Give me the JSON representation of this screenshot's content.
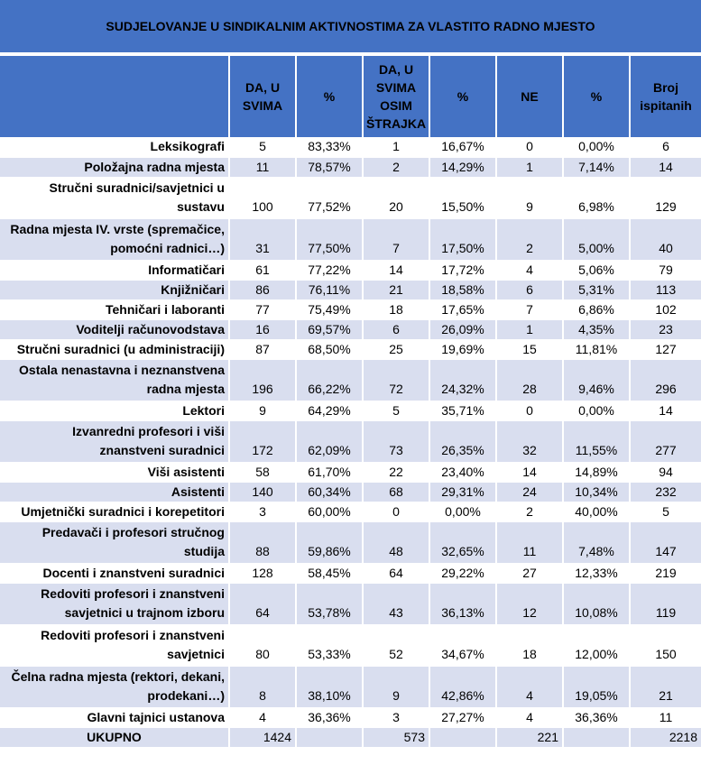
{
  "chart_data": {
    "type": "table",
    "title": "SUDJELOVANJE U SINDIKALNIM AKTIVNOSTIMA ZA VLASTITO RADNO MJESTO",
    "columns": [
      "",
      "DA, U SVIMA",
      "%",
      "DA, U SVIMA OSIM ŠTRAJKA",
      "%",
      "NE",
      "%",
      "Broj ispitanih"
    ],
    "rows": [
      {
        "label": "Leksikografi",
        "da_svima": "5",
        "pct_da": "83,33%",
        "da_osim": "1",
        "pct_osim": "16,67%",
        "ne": "0",
        "pct_ne": "0,00%",
        "broj": "6"
      },
      {
        "label": "Položajna radna mjesta",
        "da_svima": "11",
        "pct_da": "78,57%",
        "da_osim": "2",
        "pct_osim": "14,29%",
        "ne": "1",
        "pct_ne": "7,14%",
        "broj": "14"
      },
      {
        "label": "Stručni suradnici/savjetnici u sustavu",
        "da_svima": "100",
        "pct_da": "77,52%",
        "da_osim": "20",
        "pct_osim": "15,50%",
        "ne": "9",
        "pct_ne": "6,98%",
        "broj": "129"
      },
      {
        "label": "Radna mjesta IV. vrste (spremačice, pomoćni radnici…)",
        "da_svima": "31",
        "pct_da": "77,50%",
        "da_osim": "7",
        "pct_osim": "17,50%",
        "ne": "2",
        "pct_ne": "5,00%",
        "broj": "40"
      },
      {
        "label": "Informatičari",
        "da_svima": "61",
        "pct_da": "77,22%",
        "da_osim": "14",
        "pct_osim": "17,72%",
        "ne": "4",
        "pct_ne": "5,06%",
        "broj": "79"
      },
      {
        "label": "Knjižničari",
        "da_svima": "86",
        "pct_da": "76,11%",
        "da_osim": "21",
        "pct_osim": "18,58%",
        "ne": "6",
        "pct_ne": "5,31%",
        "broj": "113"
      },
      {
        "label": "Tehničari i laboranti",
        "da_svima": "77",
        "pct_da": "75,49%",
        "da_osim": "18",
        "pct_osim": "17,65%",
        "ne": "7",
        "pct_ne": "6,86%",
        "broj": "102"
      },
      {
        "label": "Voditelji računovodstava",
        "da_svima": "16",
        "pct_da": "69,57%",
        "da_osim": "6",
        "pct_osim": "26,09%",
        "ne": "1",
        "pct_ne": "4,35%",
        "broj": "23"
      },
      {
        "label": "Stručni suradnici (u administraciji)",
        "da_svima": "87",
        "pct_da": "68,50%",
        "da_osim": "25",
        "pct_osim": "19,69%",
        "ne": "15",
        "pct_ne": "11,81%",
        "broj": "127"
      },
      {
        "label": "Ostala nenastavna i neznanstvena radna mjesta",
        "da_svima": "196",
        "pct_da": "66,22%",
        "da_osim": "72",
        "pct_osim": "24,32%",
        "ne": "28",
        "pct_ne": "9,46%",
        "broj": "296"
      },
      {
        "label": "Lektori",
        "da_svima": "9",
        "pct_da": "64,29%",
        "da_osim": "5",
        "pct_osim": "35,71%",
        "ne": "0",
        "pct_ne": "0,00%",
        "broj": "14"
      },
      {
        "label": "Izvanredni profesori i viši znanstveni suradnici",
        "da_svima": "172",
        "pct_da": "62,09%",
        "da_osim": "73",
        "pct_osim": "26,35%",
        "ne": "32",
        "pct_ne": "11,55%",
        "broj": "277"
      },
      {
        "label": "Viši asistenti",
        "da_svima": "58",
        "pct_da": "61,70%",
        "da_osim": "22",
        "pct_osim": "23,40%",
        "ne": "14",
        "pct_ne": "14,89%",
        "broj": "94"
      },
      {
        "label": "Asistenti",
        "da_svima": "140",
        "pct_da": "60,34%",
        "da_osim": "68",
        "pct_osim": "29,31%",
        "ne": "24",
        "pct_ne": "10,34%",
        "broj": "232"
      },
      {
        "label": "Umjetnički suradnici i korepetitori",
        "da_svima": "3",
        "pct_da": "60,00%",
        "da_osim": "0",
        "pct_osim": "0,00%",
        "ne": "2",
        "pct_ne": "40,00%",
        "broj": "5"
      },
      {
        "label": "Predavači i profesori stručnog studija",
        "da_svima": "88",
        "pct_da": "59,86%",
        "da_osim": "48",
        "pct_osim": "32,65%",
        "ne": "11",
        "pct_ne": "7,48%",
        "broj": "147"
      },
      {
        "label": "Docenti i znanstveni suradnici",
        "da_svima": "128",
        "pct_da": "58,45%",
        "da_osim": "64",
        "pct_osim": "29,22%",
        "ne": "27",
        "pct_ne": "12,33%",
        "broj": "219"
      },
      {
        "label": "Redoviti profesori i znanstveni savjetnici u trajnom izboru",
        "da_svima": "64",
        "pct_da": "53,78%",
        "da_osim": "43",
        "pct_osim": "36,13%",
        "ne": "12",
        "pct_ne": "10,08%",
        "broj": "119"
      },
      {
        "label": "Redoviti profesori i znanstveni savjetnici",
        "da_svima": "80",
        "pct_da": "53,33%",
        "da_osim": "52",
        "pct_osim": "34,67%",
        "ne": "18",
        "pct_ne": "12,00%",
        "broj": "150"
      },
      {
        "label": "Čelna radna mjesta (rektori, dekani, prodekani…)",
        "da_svima": "8",
        "pct_da": "38,10%",
        "da_osim": "9",
        "pct_osim": "42,86%",
        "ne": "4",
        "pct_ne": "19,05%",
        "broj": "21"
      },
      {
        "label": "Glavni tajnici ustanova",
        "da_svima": "4",
        "pct_da": "36,36%",
        "da_osim": "3",
        "pct_osim": "27,27%",
        "ne": "4",
        "pct_ne": "36,36%",
        "broj": "11"
      }
    ],
    "total": {
      "label": "UKUPNO",
      "da_svima": "1424",
      "da_osim": "573",
      "ne": "221",
      "broj": "2218"
    }
  },
  "colors": {
    "header": "#4472C4",
    "band": "#D9DEEF",
    "text": "#000000"
  }
}
